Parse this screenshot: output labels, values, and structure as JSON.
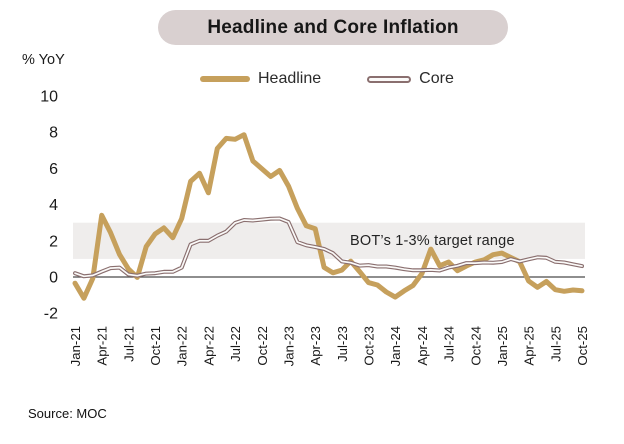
{
  "chart_data": {
    "type": "line",
    "title": "Headline and Core Inflation",
    "ylabel": "% YoY",
    "source": "Source: MOC",
    "band": {
      "label": "BOT’s 1-3% target range",
      "from": 1,
      "to": 3,
      "color": "#efedec"
    },
    "ylim": [
      -2,
      10
    ],
    "yticks": [
      10,
      8,
      6,
      4,
      2,
      0,
      -2
    ],
    "grid": false,
    "legend_position": "top-center",
    "x_tick_every": 3,
    "x_tick_labels": [
      "Jan-21",
      "Apr-21",
      "Jul-21",
      "Oct-21",
      "Jan-22",
      "Apr-22",
      "Jul-22",
      "Oct-22",
      "Jan-23",
      "Apr-23",
      "Jul-23",
      "Oct-23",
      "Jan-24",
      "Apr-24",
      "Jul-24",
      "Oct-24",
      "Jan-25",
      "Apr-25",
      "Jul-25",
      "Oct-25"
    ],
    "series": [
      {
        "name": "Headline",
        "color": "#C6A05C",
        "style": "thick",
        "values": [
          -0.34,
          -1.17,
          -0.08,
          3.41,
          2.44,
          1.25,
          0.45,
          -0.02,
          1.68,
          2.38,
          2.71,
          2.17,
          3.23,
          5.28,
          5.73,
          4.65,
          7.1,
          7.66,
          7.61,
          7.86,
          6.41,
          5.98,
          5.55,
          5.89,
          5.02,
          3.79,
          2.83,
          2.67,
          0.53,
          0.23,
          0.38,
          0.88,
          0.3,
          -0.31,
          -0.44,
          -0.83,
          -1.11,
          -0.77,
          -0.47,
          0.19,
          1.54,
          0.62,
          0.83,
          0.35,
          0.61,
          0.83,
          0.95,
          1.23,
          1.32,
          1.08,
          0.84,
          -0.22,
          -0.57,
          -0.25,
          -0.7,
          -0.79,
          -0.72,
          -0.76
        ]
      },
      {
        "name": "Core",
        "color": "#8A6F6F",
        "style": "double-outline",
        "values": [
          0.21,
          0.04,
          0.09,
          0.3,
          0.49,
          0.52,
          0.14,
          0.07,
          0.19,
          0.21,
          0.29,
          0.29,
          0.52,
          1.8,
          2.0,
          2.0,
          2.28,
          2.51,
          2.99,
          3.15,
          3.12,
          3.17,
          3.22,
          3.23,
          3.04,
          1.93,
          1.75,
          1.66,
          1.55,
          1.32,
          0.86,
          0.79,
          0.63,
          0.66,
          0.58,
          0.58,
          0.52,
          0.43,
          0.37,
          0.37,
          0.39,
          0.36,
          0.52,
          0.62,
          0.77,
          0.77,
          0.8,
          0.79,
          0.83,
          0.99,
          0.86,
          0.98,
          1.09,
          1.06,
          0.84,
          0.8,
          0.7,
          0.6
        ]
      }
    ],
    "zero_line_color": "#4b4b4b",
    "text_color": "#1a1a1a"
  }
}
